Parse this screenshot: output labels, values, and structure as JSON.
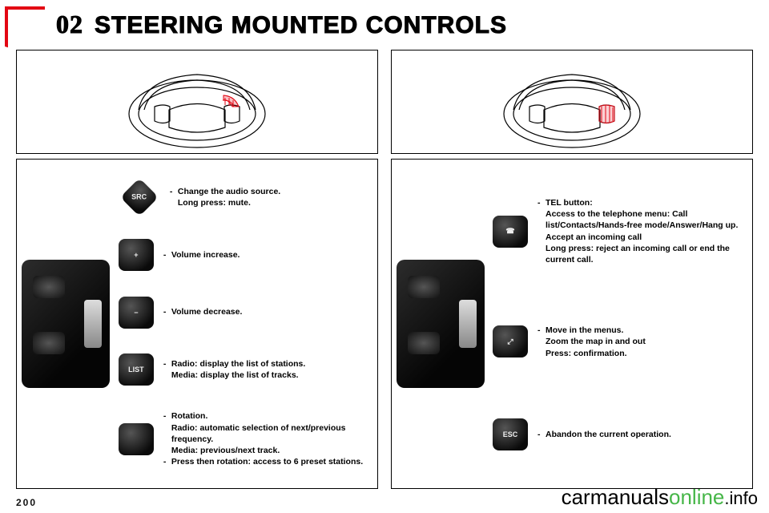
{
  "header": {
    "chapter_number": "02",
    "page_title": "STEERING MOUNTED CONTROLS"
  },
  "page_number": "200",
  "watermark": {
    "part1": "carmanuals",
    "part2": "online",
    "suffix": ".info"
  },
  "steering_wheel": {
    "stroke": "#000000",
    "fill": "#ffffff",
    "highlight_stroke": "#e30613",
    "highlight_fill": "#e30613"
  },
  "left_column": {
    "items": [
      {
        "icon_label": "SRC",
        "lines": [
          "Change the audio source.",
          "Long press: mute."
        ]
      },
      {
        "icon_label": "+",
        "lines": [
          "Volume increase."
        ]
      },
      {
        "icon_label": "−",
        "lines": [
          "Volume decrease."
        ]
      },
      {
        "icon_label": "LIST",
        "lines": [
          "Radio: display the list of stations.",
          "Media: display the list of tracks."
        ]
      },
      {
        "icon_label": "",
        "lines": [
          "Rotation.",
          "Radio: automatic selection of next/previous frequency.",
          "Media: previous/next track.",
          "Press then rotation: access to 6 preset stations."
        ]
      }
    ]
  },
  "right_column": {
    "items": [
      {
        "icon_label": "☎",
        "lines": [
          "TEL button:",
          "Access to the telephone menu: Call list/Contacts/Hands-free mode/Answer/Hang up.",
          "Accept an incoming call",
          "Long press: reject an incoming call or end the current call."
        ]
      },
      {
        "icon_label": "⤢",
        "lines": [
          "Move in the menus.",
          "Zoom the map in and out",
          "Press: confirmation."
        ]
      },
      {
        "icon_label": "ESC",
        "lines": [
          "Abandon the current operation."
        ]
      }
    ]
  }
}
